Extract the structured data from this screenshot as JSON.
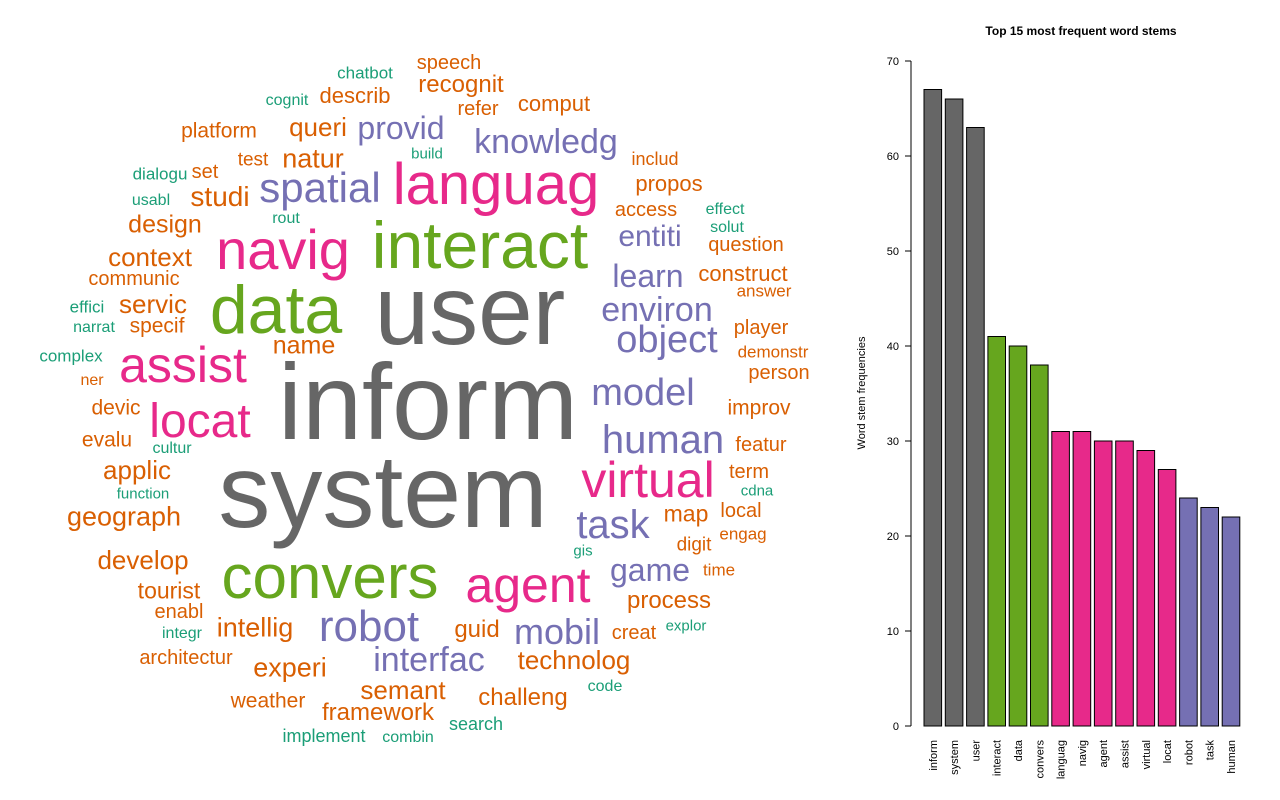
{
  "palette": {
    "gray": "#666666",
    "green": "#66a61e",
    "pink": "#e7298a",
    "purple": "#7570b3",
    "orange": "#d95f02",
    "teal": "#1b9e77"
  },
  "word_cloud": [
    {
      "text": "inform",
      "color": "gray"
    },
    {
      "text": "system",
      "color": "gray"
    },
    {
      "text": "user",
      "color": "gray"
    },
    {
      "text": "interact",
      "color": "green"
    },
    {
      "text": "data",
      "color": "green"
    },
    {
      "text": "convers",
      "color": "green"
    },
    {
      "text": "languag",
      "color": "pink"
    },
    {
      "text": "navig",
      "color": "pink"
    },
    {
      "text": "agent",
      "color": "pink"
    },
    {
      "text": "assist",
      "color": "pink"
    },
    {
      "text": "virtual",
      "color": "pink"
    },
    {
      "text": "locat",
      "color": "pink"
    },
    {
      "text": "robot",
      "color": "purple"
    },
    {
      "text": "task",
      "color": "purple"
    },
    {
      "text": "human",
      "color": "purple"
    },
    {
      "text": "spatial",
      "color": "purple"
    },
    {
      "text": "knowledg",
      "color": "purple"
    },
    {
      "text": "provid",
      "color": "purple"
    },
    {
      "text": "entiti",
      "color": "purple"
    },
    {
      "text": "learn",
      "color": "purple"
    },
    {
      "text": "environ",
      "color": "purple"
    },
    {
      "text": "object",
      "color": "purple"
    },
    {
      "text": "model",
      "color": "purple"
    },
    {
      "text": "game",
      "color": "purple"
    },
    {
      "text": "mobil",
      "color": "purple"
    },
    {
      "text": "interfac",
      "color": "purple"
    },
    {
      "text": "speech",
      "color": "orange"
    },
    {
      "text": "recognit",
      "color": "orange"
    },
    {
      "text": "describ",
      "color": "orange"
    },
    {
      "text": "refer",
      "color": "orange"
    },
    {
      "text": "comput",
      "color": "orange"
    },
    {
      "text": "queri",
      "color": "orange"
    },
    {
      "text": "platform",
      "color": "orange"
    },
    {
      "text": "natur",
      "color": "orange"
    },
    {
      "text": "test",
      "color": "orange"
    },
    {
      "text": "set",
      "color": "orange"
    },
    {
      "text": "studi",
      "color": "orange"
    },
    {
      "text": "design",
      "color": "orange"
    },
    {
      "text": "includ",
      "color": "orange"
    },
    {
      "text": "propos",
      "color": "orange"
    },
    {
      "text": "access",
      "color": "orange"
    },
    {
      "text": "question",
      "color": "orange"
    },
    {
      "text": "context",
      "color": "orange"
    },
    {
      "text": "communic",
      "color": "orange"
    },
    {
      "text": "servic",
      "color": "orange"
    },
    {
      "text": "specif",
      "color": "orange"
    },
    {
      "text": "construct",
      "color": "orange"
    },
    {
      "text": "answer",
      "color": "orange"
    },
    {
      "text": "name",
      "color": "orange"
    },
    {
      "text": "player",
      "color": "orange"
    },
    {
      "text": "demonstr",
      "color": "orange"
    },
    {
      "text": "ner",
      "color": "orange"
    },
    {
      "text": "person",
      "color": "orange"
    },
    {
      "text": "devic",
      "color": "orange"
    },
    {
      "text": "improv",
      "color": "orange"
    },
    {
      "text": "evalu",
      "color": "orange"
    },
    {
      "text": "featur",
      "color": "orange"
    },
    {
      "text": "applic",
      "color": "orange"
    },
    {
      "text": "term",
      "color": "orange"
    },
    {
      "text": "geograph",
      "color": "orange"
    },
    {
      "text": "map",
      "color": "orange"
    },
    {
      "text": "local",
      "color": "orange"
    },
    {
      "text": "digit",
      "color": "orange"
    },
    {
      "text": "engag",
      "color": "orange"
    },
    {
      "text": "develop",
      "color": "orange"
    },
    {
      "text": "time",
      "color": "orange"
    },
    {
      "text": "tourist",
      "color": "orange"
    },
    {
      "text": "process",
      "color": "orange"
    },
    {
      "text": "enabl",
      "color": "orange"
    },
    {
      "text": "intellig",
      "color": "orange"
    },
    {
      "text": "guid",
      "color": "orange"
    },
    {
      "text": "creat",
      "color": "orange"
    },
    {
      "text": "architectur",
      "color": "orange"
    },
    {
      "text": "experi",
      "color": "orange"
    },
    {
      "text": "technolog",
      "color": "orange"
    },
    {
      "text": "semant",
      "color": "orange"
    },
    {
      "text": "weather",
      "color": "orange"
    },
    {
      "text": "challeng",
      "color": "orange"
    },
    {
      "text": "framework",
      "color": "orange"
    },
    {
      "text": "chatbot",
      "color": "teal"
    },
    {
      "text": "cognit",
      "color": "teal"
    },
    {
      "text": "build",
      "color": "teal"
    },
    {
      "text": "dialogu",
      "color": "teal"
    },
    {
      "text": "usabl",
      "color": "teal"
    },
    {
      "text": "rout",
      "color": "teal"
    },
    {
      "text": "effect",
      "color": "teal"
    },
    {
      "text": "solut",
      "color": "teal"
    },
    {
      "text": "effici",
      "color": "teal"
    },
    {
      "text": "narrat",
      "color": "teal"
    },
    {
      "text": "complex",
      "color": "teal"
    },
    {
      "text": "cultur",
      "color": "teal"
    },
    {
      "text": "function",
      "color": "teal"
    },
    {
      "text": "cdna",
      "color": "teal"
    },
    {
      "text": "gis",
      "color": "teal"
    },
    {
      "text": "integr",
      "color": "teal"
    },
    {
      "text": "explor",
      "color": "teal"
    },
    {
      "text": "code",
      "color": "teal"
    },
    {
      "text": "search",
      "color": "teal"
    },
    {
      "text": "implement",
      "color": "teal"
    },
    {
      "text": "combin",
      "color": "teal"
    }
  ],
  "chart_data": {
    "type": "bar",
    "title": "Top 15 most frequent word stems",
    "xlabel": "",
    "ylabel": "Word stem frequencies",
    "ylim": [
      0,
      70
    ],
    "yticks": [
      0,
      10,
      20,
      30,
      40,
      50,
      60,
      70
    ],
    "grid": false,
    "categories": [
      "inform",
      "system",
      "user",
      "interact",
      "data",
      "convers",
      "languag",
      "navig",
      "agent",
      "assist",
      "virtual",
      "locat",
      "robot",
      "task",
      "human"
    ],
    "values": [
      67,
      66,
      63,
      41,
      40,
      38,
      31,
      31,
      30,
      30,
      29,
      27,
      24,
      23,
      22
    ],
    "bar_colors": [
      "#666666",
      "#666666",
      "#666666",
      "#66a61e",
      "#66a61e",
      "#66a61e",
      "#e7298a",
      "#e7298a",
      "#e7298a",
      "#e7298a",
      "#e7298a",
      "#e7298a",
      "#7570b3",
      "#7570b3",
      "#7570b3"
    ]
  }
}
